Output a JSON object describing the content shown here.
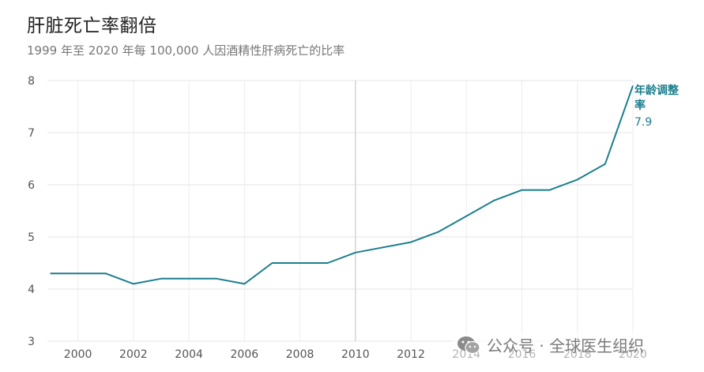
{
  "header": {
    "title": "肝脏死亡率翻倍",
    "subtitle": "1999 年至 2020 年每 100,000 人因酒精性肝病死亡的比率"
  },
  "watermark": {
    "text": "公众号 · 全球医生组织",
    "icon": "wechat-icon"
  },
  "chart_data": {
    "type": "line",
    "title": "肝脏死亡率翻倍",
    "subtitle": "1999 年至 2020 年每 100,000 人因酒精性肝病死亡的比率",
    "xlim": [
      1998.9,
      2020
    ],
    "ylim": [
      3,
      8
    ],
    "x_ticks": [
      "2000",
      "2002",
      "2004",
      "2006",
      "2008",
      "2010",
      "2012",
      "2014",
      "2016",
      "2018",
      "2020"
    ],
    "y_ticks": [
      "3",
      "4",
      "5",
      "6",
      "7",
      "8"
    ],
    "grid": true,
    "color": "#1a7f8e",
    "series": [
      {
        "name": "年龄调整率",
        "end_label": [
          "年龄调整",
          "率"
        ],
        "end_value": "7.9",
        "x": [
          1999,
          2000,
          2001,
          2002,
          2003,
          2004,
          2005,
          2006,
          2007,
          2008,
          2009,
          2010,
          2011,
          2012,
          2013,
          2014,
          2015,
          2016,
          2017,
          2018,
          2019,
          2020
        ],
        "y": [
          4.3,
          4.3,
          4.3,
          4.1,
          4.2,
          4.2,
          4.2,
          4.1,
          4.5,
          4.5,
          4.5,
          4.7,
          4.8,
          4.9,
          5.1,
          5.4,
          5.7,
          5.9,
          5.9,
          6.1,
          6.4,
          7.9
        ]
      }
    ]
  }
}
